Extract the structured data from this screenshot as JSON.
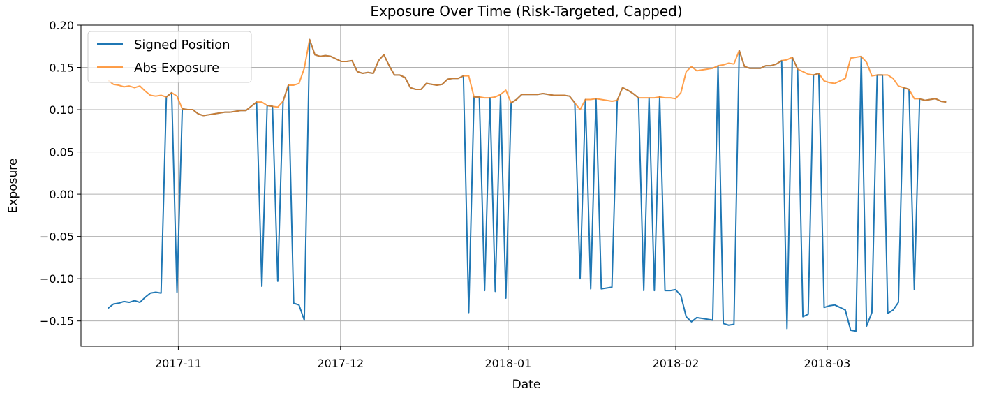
{
  "chart_data": {
    "type": "line",
    "title": "Exposure Over Time (Risk-Targeted, Capped)",
    "xlabel": "Date",
    "ylabel": "Exposure",
    "x_start": "2017-10-19",
    "x_end": "2018-03-23",
    "xlim": [
      "2017-10-14",
      "2018-03-28"
    ],
    "ylim": [
      -0.18,
      0.2
    ],
    "yticks": [
      -0.15,
      -0.1,
      -0.05,
      0.0,
      0.05,
      0.1,
      0.15,
      0.2
    ],
    "ytick_labels": [
      "−0.15",
      "−0.10",
      "−0.05",
      "0.00",
      "0.05",
      "0.10",
      "0.15",
      "0.20"
    ],
    "xticks": [
      {
        "date": "2017-11-01",
        "label": "2017-11"
      },
      {
        "date": "2017-12-01",
        "label": "2017-12"
      },
      {
        "date": "2018-01-01",
        "label": "2018-01"
      },
      {
        "date": "2018-02-01",
        "label": "2018-02"
      },
      {
        "date": "2018-03-01",
        "label": "2018-03"
      }
    ],
    "grid": true,
    "legend": "upper-left",
    "series": [
      {
        "name": "Signed Position",
        "color": "#1f77b4",
        "values": [
          -0.135,
          -0.13,
          -0.129,
          -0.127,
          -0.128,
          -0.126,
          -0.128,
          -0.122,
          -0.117,
          -0.116,
          -0.117,
          0.115,
          0.12,
          -0.116,
          0.101,
          0.1,
          0.1,
          0.095,
          0.093,
          0.094,
          0.095,
          0.096,
          0.097,
          0.097,
          0.098,
          0.099,
          0.099,
          0.104,
          0.109,
          -0.109,
          0.105,
          0.104,
          -0.103,
          0.11,
          0.129,
          -0.129,
          -0.131,
          -0.149,
          0.183,
          0.165,
          0.163,
          0.164,
          0.163,
          0.16,
          0.157,
          0.157,
          0.158,
          0.145,
          0.143,
          0.144,
          0.143,
          0.158,
          0.165,
          0.152,
          0.141,
          0.141,
          0.138,
          0.126,
          0.124,
          0.124,
          0.131,
          0.13,
          0.129,
          0.13,
          0.136,
          0.137,
          0.137,
          0.14,
          -0.14,
          0.115,
          0.115,
          -0.114,
          0.114,
          -0.115,
          0.118,
          -0.123,
          0.108,
          0.112,
          0.118,
          0.118,
          0.118,
          0.118,
          0.119,
          0.118,
          0.117,
          0.117,
          0.117,
          0.116,
          0.108,
          -0.1,
          0.112,
          -0.112,
          0.113,
          -0.112,
          -0.111,
          -0.11,
          0.111,
          0.126,
          0.123,
          0.119,
          0.114,
          -0.114,
          0.114,
          -0.114,
          0.115,
          -0.114,
          -0.114,
          -0.113,
          -0.12,
          -0.145,
          -0.151,
          -0.146,
          -0.147,
          -0.148,
          -0.149,
          0.152,
          -0.153,
          -0.155,
          -0.154,
          0.17,
          0.151,
          0.149,
          0.149,
          0.149,
          0.152,
          0.152,
          0.154,
          0.158,
          -0.159,
          0.162,
          0.148,
          -0.145,
          -0.142,
          0.141,
          0.143,
          -0.134,
          -0.132,
          -0.131,
          -0.134,
          -0.137,
          -0.161,
          -0.162,
          0.163,
          -0.156,
          -0.14,
          0.141,
          0.141,
          -0.141,
          -0.137,
          -0.128,
          0.126,
          0.124,
          -0.113,
          0.113,
          0.111,
          0.112,
          0.113,
          0.11,
          0.109
        ]
      },
      {
        "name": "Abs Exposure",
        "color": "#ff7f0e",
        "values": [
          0.135,
          0.13,
          0.129,
          0.127,
          0.128,
          0.126,
          0.128,
          0.122,
          0.117,
          0.116,
          0.117,
          0.115,
          0.12,
          0.116,
          0.101,
          0.1,
          0.1,
          0.095,
          0.093,
          0.094,
          0.095,
          0.096,
          0.097,
          0.097,
          0.098,
          0.099,
          0.099,
          0.104,
          0.109,
          0.109,
          0.105,
          0.104,
          0.103,
          0.11,
          0.129,
          0.129,
          0.131,
          0.149,
          0.183,
          0.165,
          0.163,
          0.164,
          0.163,
          0.16,
          0.157,
          0.157,
          0.158,
          0.145,
          0.143,
          0.144,
          0.143,
          0.158,
          0.165,
          0.152,
          0.141,
          0.141,
          0.138,
          0.126,
          0.124,
          0.124,
          0.131,
          0.13,
          0.129,
          0.13,
          0.136,
          0.137,
          0.137,
          0.14,
          0.14,
          0.115,
          0.115,
          0.114,
          0.114,
          0.115,
          0.118,
          0.123,
          0.108,
          0.112,
          0.118,
          0.118,
          0.118,
          0.118,
          0.119,
          0.118,
          0.117,
          0.117,
          0.117,
          0.116,
          0.108,
          0.1,
          0.112,
          0.112,
          0.113,
          0.112,
          0.111,
          0.11,
          0.111,
          0.126,
          0.123,
          0.119,
          0.114,
          0.114,
          0.114,
          0.114,
          0.115,
          0.114,
          0.114,
          0.113,
          0.12,
          0.145,
          0.151,
          0.146,
          0.147,
          0.148,
          0.149,
          0.152,
          0.153,
          0.155,
          0.154,
          0.17,
          0.151,
          0.149,
          0.149,
          0.149,
          0.152,
          0.152,
          0.154,
          0.158,
          0.159,
          0.162,
          0.148,
          0.145,
          0.142,
          0.141,
          0.143,
          0.134,
          0.132,
          0.131,
          0.134,
          0.137,
          0.161,
          0.162,
          0.163,
          0.156,
          0.14,
          0.141,
          0.141,
          0.141,
          0.137,
          0.128,
          0.126,
          0.124,
          0.113,
          0.113,
          0.111,
          0.112,
          0.113,
          0.11,
          0.109
        ]
      }
    ]
  }
}
